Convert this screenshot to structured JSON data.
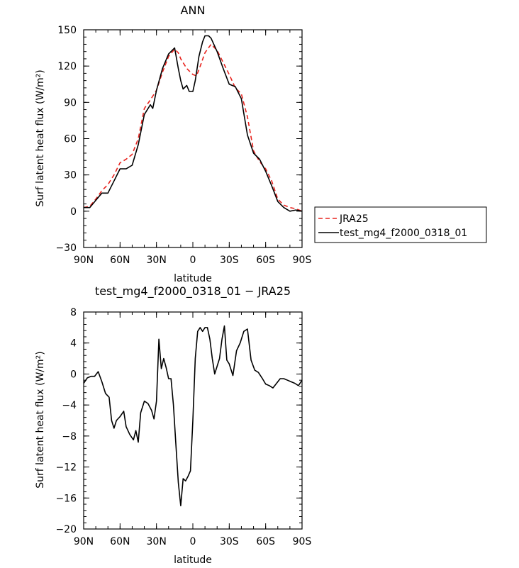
{
  "chart_data": [
    {
      "type": "line",
      "title": "ANN",
      "xlabel": "latitude",
      "ylabel": "Surf latent heat flux (W/m²)",
      "ylim": [
        -30,
        150
      ],
      "yticks": [
        -30,
        0,
        30,
        60,
        90,
        120,
        150
      ],
      "xlim": [
        90,
        -90
      ],
      "xticks": [
        90,
        60,
        30,
        0,
        -30,
        -60,
        -90
      ],
      "xticklabels": [
        "90N",
        "60N",
        "30N",
        "0",
        "30S",
        "60S",
        "90S"
      ],
      "legend": {
        "placement": "right-outside",
        "entries": [
          "JRA25",
          "test_mg4_f2000_0318_01"
        ]
      },
      "series": [
        {
          "name": "JRA25",
          "color": "#e8231e",
          "dash": "dashed",
          "x": [
            90,
            85,
            80,
            75,
            70,
            65,
            60,
            55,
            50,
            45,
            40,
            35,
            30,
            25,
            20,
            15,
            12,
            10,
            5,
            0,
            -3,
            -5,
            -10,
            -15,
            -20,
            -25,
            -30,
            -35,
            -40,
            -45,
            -50,
            -55,
            -60,
            -65,
            -70,
            -75,
            -80,
            -85,
            -90
          ],
          "values": [
            3,
            4,
            10,
            17,
            22,
            30,
            40,
            43,
            47,
            60,
            85,
            92,
            100,
            115,
            128,
            134,
            131,
            126,
            118,
            113,
            112,
            117,
            131,
            138,
            133,
            123,
            113,
            102,
            97,
            78,
            50,
            41,
            35,
            25,
            10,
            5,
            3,
            2,
            0
          ]
        },
        {
          "name": "test_mg4_f2000_0318_01",
          "color": "#000000",
          "dash": "solid",
          "x": [
            90,
            85,
            80,
            75,
            70,
            65,
            60,
            55,
            50,
            45,
            40,
            35,
            33,
            30,
            25,
            20,
            15,
            12,
            10,
            8,
            5,
            3,
            0,
            -2,
            -5,
            -8,
            -10,
            -13,
            -15,
            -20,
            -25,
            -30,
            -35,
            -37,
            -40,
            -45,
            -50,
            -55,
            -60,
            -65,
            -70,
            -75,
            -80,
            -85,
            -90
          ],
          "values": [
            3,
            3,
            9,
            15,
            15,
            25,
            35,
            35,
            38,
            55,
            80,
            88,
            85,
            100,
            118,
            130,
            135,
            118,
            108,
            101,
            104,
            99,
            99,
            108,
            128,
            140,
            145,
            145,
            143,
            132,
            118,
            105,
            103,
            99,
            93,
            63,
            48,
            43,
            33,
            21,
            8,
            3,
            0,
            1,
            0
          ]
        }
      ]
    },
    {
      "type": "line",
      "title": "test_mg4_f2000_0318_01 − JRA25",
      "xlabel": "latitude",
      "ylabel": "Surf latent heat flux (W/m²)",
      "ylim": [
        -20,
        8
      ],
      "yticks": [
        -20,
        -16,
        -12,
        -8,
        -4,
        0,
        4,
        8
      ],
      "xlim": [
        90,
        -90
      ],
      "xticks": [
        90,
        60,
        30,
        0,
        -30,
        -60,
        -90
      ],
      "xticklabels": [
        "90N",
        "60N",
        "30N",
        "0",
        "30S",
        "60S",
        "90S"
      ],
      "series": [
        {
          "color": "#000000",
          "dash": "solid",
          "x": [
            90,
            87,
            84,
            81,
            78,
            75,
            72,
            69,
            67,
            65,
            63,
            60,
            57,
            55,
            52,
            49,
            47,
            45,
            43,
            40,
            37,
            34,
            32,
            30,
            28,
            26,
            24,
            22,
            20,
            18,
            16,
            14,
            12,
            10,
            8,
            6,
            4,
            2,
            0,
            -2,
            -4,
            -6,
            -8,
            -10,
            -12,
            -14,
            -16,
            -18,
            -20,
            -22,
            -24,
            -26,
            -28,
            -30,
            -33,
            -36,
            -39,
            -42,
            -45,
            -48,
            -51,
            -54,
            -57,
            -60,
            -63,
            -66,
            -69,
            -72,
            -75,
            -78,
            -81,
            -84,
            -87,
            -90
          ],
          "values": [
            -1.2,
            -0.5,
            -0.3,
            -0.3,
            0.3,
            -1.0,
            -2.5,
            -3.0,
            -6.0,
            -7.0,
            -6.0,
            -5.5,
            -4.8,
            -6.8,
            -7.8,
            -8.5,
            -7.3,
            -8.8,
            -5.0,
            -3.5,
            -3.8,
            -4.7,
            -5.8,
            -3.5,
            4.5,
            0.7,
            2.0,
            0.8,
            -0.6,
            -0.6,
            -4.0,
            -9.0,
            -14.0,
            -17.0,
            -13.5,
            -13.8,
            -13.2,
            -12.5,
            -6.0,
            2.0,
            5.5,
            6.0,
            5.5,
            6.0,
            6.0,
            4.5,
            2.0,
            0.0,
            1.0,
            2.0,
            4.5,
            6.2,
            1.8,
            1.3,
            -0.2,
            3.0,
            4.0,
            5.5,
            5.8,
            1.8,
            0.5,
            0.2,
            -0.5,
            -1.3,
            -1.5,
            -1.8,
            -1.2,
            -0.6,
            -0.6,
            -0.8,
            -1.0,
            -1.2,
            -1.5,
            -0.8
          ]
        }
      ]
    }
  ]
}
